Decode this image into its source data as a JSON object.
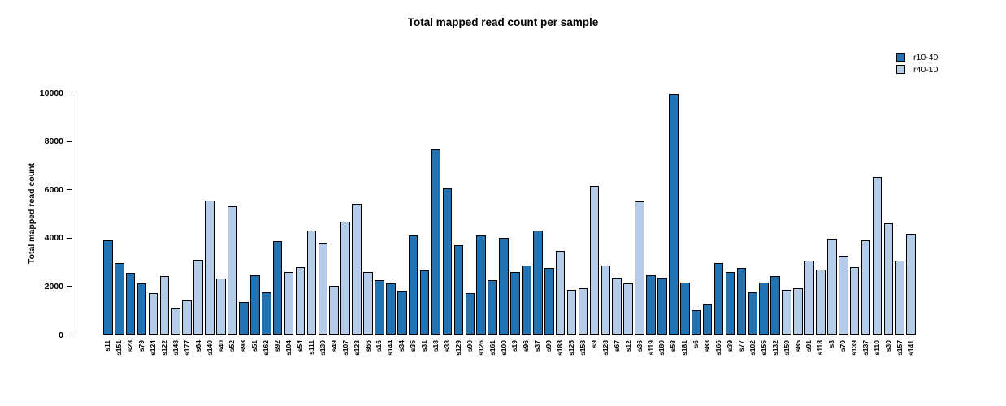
{
  "chart_data": {
    "type": "bar",
    "title": "Total mapped read count per sample",
    "xlabel": "",
    "ylabel": "Total mapped read count",
    "ylim": [
      0,
      10000
    ],
    "yticks": [
      0,
      2000,
      4000,
      6000,
      8000,
      10000
    ],
    "grid": false,
    "background": "#ffffff",
    "bar_border_color": "#000000",
    "legend_position": "top-right",
    "series_legend": [
      {
        "name": "r10-40",
        "color": "#2173b4"
      },
      {
        "name": "r40-10",
        "color": "#b5cce8"
      }
    ],
    "bars": [
      {
        "label": "s11",
        "value": 3900,
        "group": "r10-40"
      },
      {
        "label": "s151",
        "value": 2950,
        "group": "r10-40"
      },
      {
        "label": "s28",
        "value": 2550,
        "group": "r10-40"
      },
      {
        "label": "s79",
        "value": 2100,
        "group": "r10-40"
      },
      {
        "label": "s124",
        "value": 1700,
        "group": "r40-10"
      },
      {
        "label": "s122",
        "value": 2400,
        "group": "r40-10"
      },
      {
        "label": "s148",
        "value": 1100,
        "group": "r40-10"
      },
      {
        "label": "s177",
        "value": 1400,
        "group": "r40-10"
      },
      {
        "label": "s64",
        "value": 3100,
        "group": "r40-10"
      },
      {
        "label": "s140",
        "value": 5550,
        "group": "r40-10"
      },
      {
        "label": "s40",
        "value": 2300,
        "group": "r40-10"
      },
      {
        "label": "s52",
        "value": 5300,
        "group": "r40-10"
      },
      {
        "label": "s98",
        "value": 1350,
        "group": "r10-40"
      },
      {
        "label": "s51",
        "value": 2450,
        "group": "r10-40"
      },
      {
        "label": "s162",
        "value": 1750,
        "group": "r10-40"
      },
      {
        "label": "s92",
        "value": 3850,
        "group": "r10-40"
      },
      {
        "label": "s104",
        "value": 2600,
        "group": "r40-10"
      },
      {
        "label": "s54",
        "value": 2800,
        "group": "r40-10"
      },
      {
        "label": "s111",
        "value": 4300,
        "group": "r40-10"
      },
      {
        "label": "s130",
        "value": 3800,
        "group": "r40-10"
      },
      {
        "label": "s49",
        "value": 2000,
        "group": "r40-10"
      },
      {
        "label": "s107",
        "value": 4650,
        "group": "r40-10"
      },
      {
        "label": "s123",
        "value": 5400,
        "group": "r40-10"
      },
      {
        "label": "s66",
        "value": 2600,
        "group": "r40-10"
      },
      {
        "label": "s16",
        "value": 2250,
        "group": "r10-40"
      },
      {
        "label": "s144",
        "value": 2100,
        "group": "r10-40"
      },
      {
        "label": "s34",
        "value": 1800,
        "group": "r10-40"
      },
      {
        "label": "s35",
        "value": 4100,
        "group": "r10-40"
      },
      {
        "label": "s31",
        "value": 2650,
        "group": "r10-40"
      },
      {
        "label": "s18",
        "value": 7650,
        "group": "r10-40"
      },
      {
        "label": "s33",
        "value": 6050,
        "group": "r10-40"
      },
      {
        "label": "s129",
        "value": 3700,
        "group": "r10-40"
      },
      {
        "label": "s90",
        "value": 1700,
        "group": "r10-40"
      },
      {
        "label": "s126",
        "value": 4100,
        "group": "r10-40"
      },
      {
        "label": "s161",
        "value": 2250,
        "group": "r10-40"
      },
      {
        "label": "s100",
        "value": 4000,
        "group": "r10-40"
      },
      {
        "label": "s19",
        "value": 2600,
        "group": "r10-40"
      },
      {
        "label": "s96",
        "value": 2850,
        "group": "r10-40"
      },
      {
        "label": "s37",
        "value": 4300,
        "group": "r10-40"
      },
      {
        "label": "s99",
        "value": 2750,
        "group": "r10-40"
      },
      {
        "label": "s188",
        "value": 3450,
        "group": "r40-10"
      },
      {
        "label": "s125",
        "value": 1850,
        "group": "r40-10"
      },
      {
        "label": "s158",
        "value": 1900,
        "group": "r40-10"
      },
      {
        "label": "s9",
        "value": 6150,
        "group": "r40-10"
      },
      {
        "label": "s128",
        "value": 2850,
        "group": "r40-10"
      },
      {
        "label": "s67",
        "value": 2350,
        "group": "r40-10"
      },
      {
        "label": "s12",
        "value": 2100,
        "group": "r40-10"
      },
      {
        "label": "s36",
        "value": 5500,
        "group": "r40-10"
      },
      {
        "label": "s119",
        "value": 2450,
        "group": "r10-40"
      },
      {
        "label": "s180",
        "value": 2350,
        "group": "r10-40"
      },
      {
        "label": "s58",
        "value": 9950,
        "group": "r10-40"
      },
      {
        "label": "s181",
        "value": 2150,
        "group": "r10-40"
      },
      {
        "label": "s6",
        "value": 1000,
        "group": "r10-40"
      },
      {
        "label": "s83",
        "value": 1250,
        "group": "r10-40"
      },
      {
        "label": "s166",
        "value": 2950,
        "group": "r10-40"
      },
      {
        "label": "s39",
        "value": 2600,
        "group": "r10-40"
      },
      {
        "label": "s77",
        "value": 2750,
        "group": "r10-40"
      },
      {
        "label": "s102",
        "value": 1750,
        "group": "r10-40"
      },
      {
        "label": "s155",
        "value": 2150,
        "group": "r10-40"
      },
      {
        "label": "s132",
        "value": 2400,
        "group": "r10-40"
      },
      {
        "label": "s159",
        "value": 1850,
        "group": "r40-10"
      },
      {
        "label": "s85",
        "value": 1900,
        "group": "r40-10"
      },
      {
        "label": "s91",
        "value": 3050,
        "group": "r40-10"
      },
      {
        "label": "s118",
        "value": 2700,
        "group": "r40-10"
      },
      {
        "label": "s3",
        "value": 3950,
        "group": "r40-10"
      },
      {
        "label": "s70",
        "value": 3250,
        "group": "r40-10"
      },
      {
        "label": "s139",
        "value": 2800,
        "group": "r40-10"
      },
      {
        "label": "s137",
        "value": 3900,
        "group": "r40-10"
      },
      {
        "label": "s110",
        "value": 6500,
        "group": "r40-10"
      },
      {
        "label": "s30",
        "value": 4600,
        "group": "r40-10"
      },
      {
        "label": "s157",
        "value": 3050,
        "group": "r40-10"
      },
      {
        "label": "s141",
        "value": 4150,
        "group": "r40-10"
      }
    ]
  }
}
